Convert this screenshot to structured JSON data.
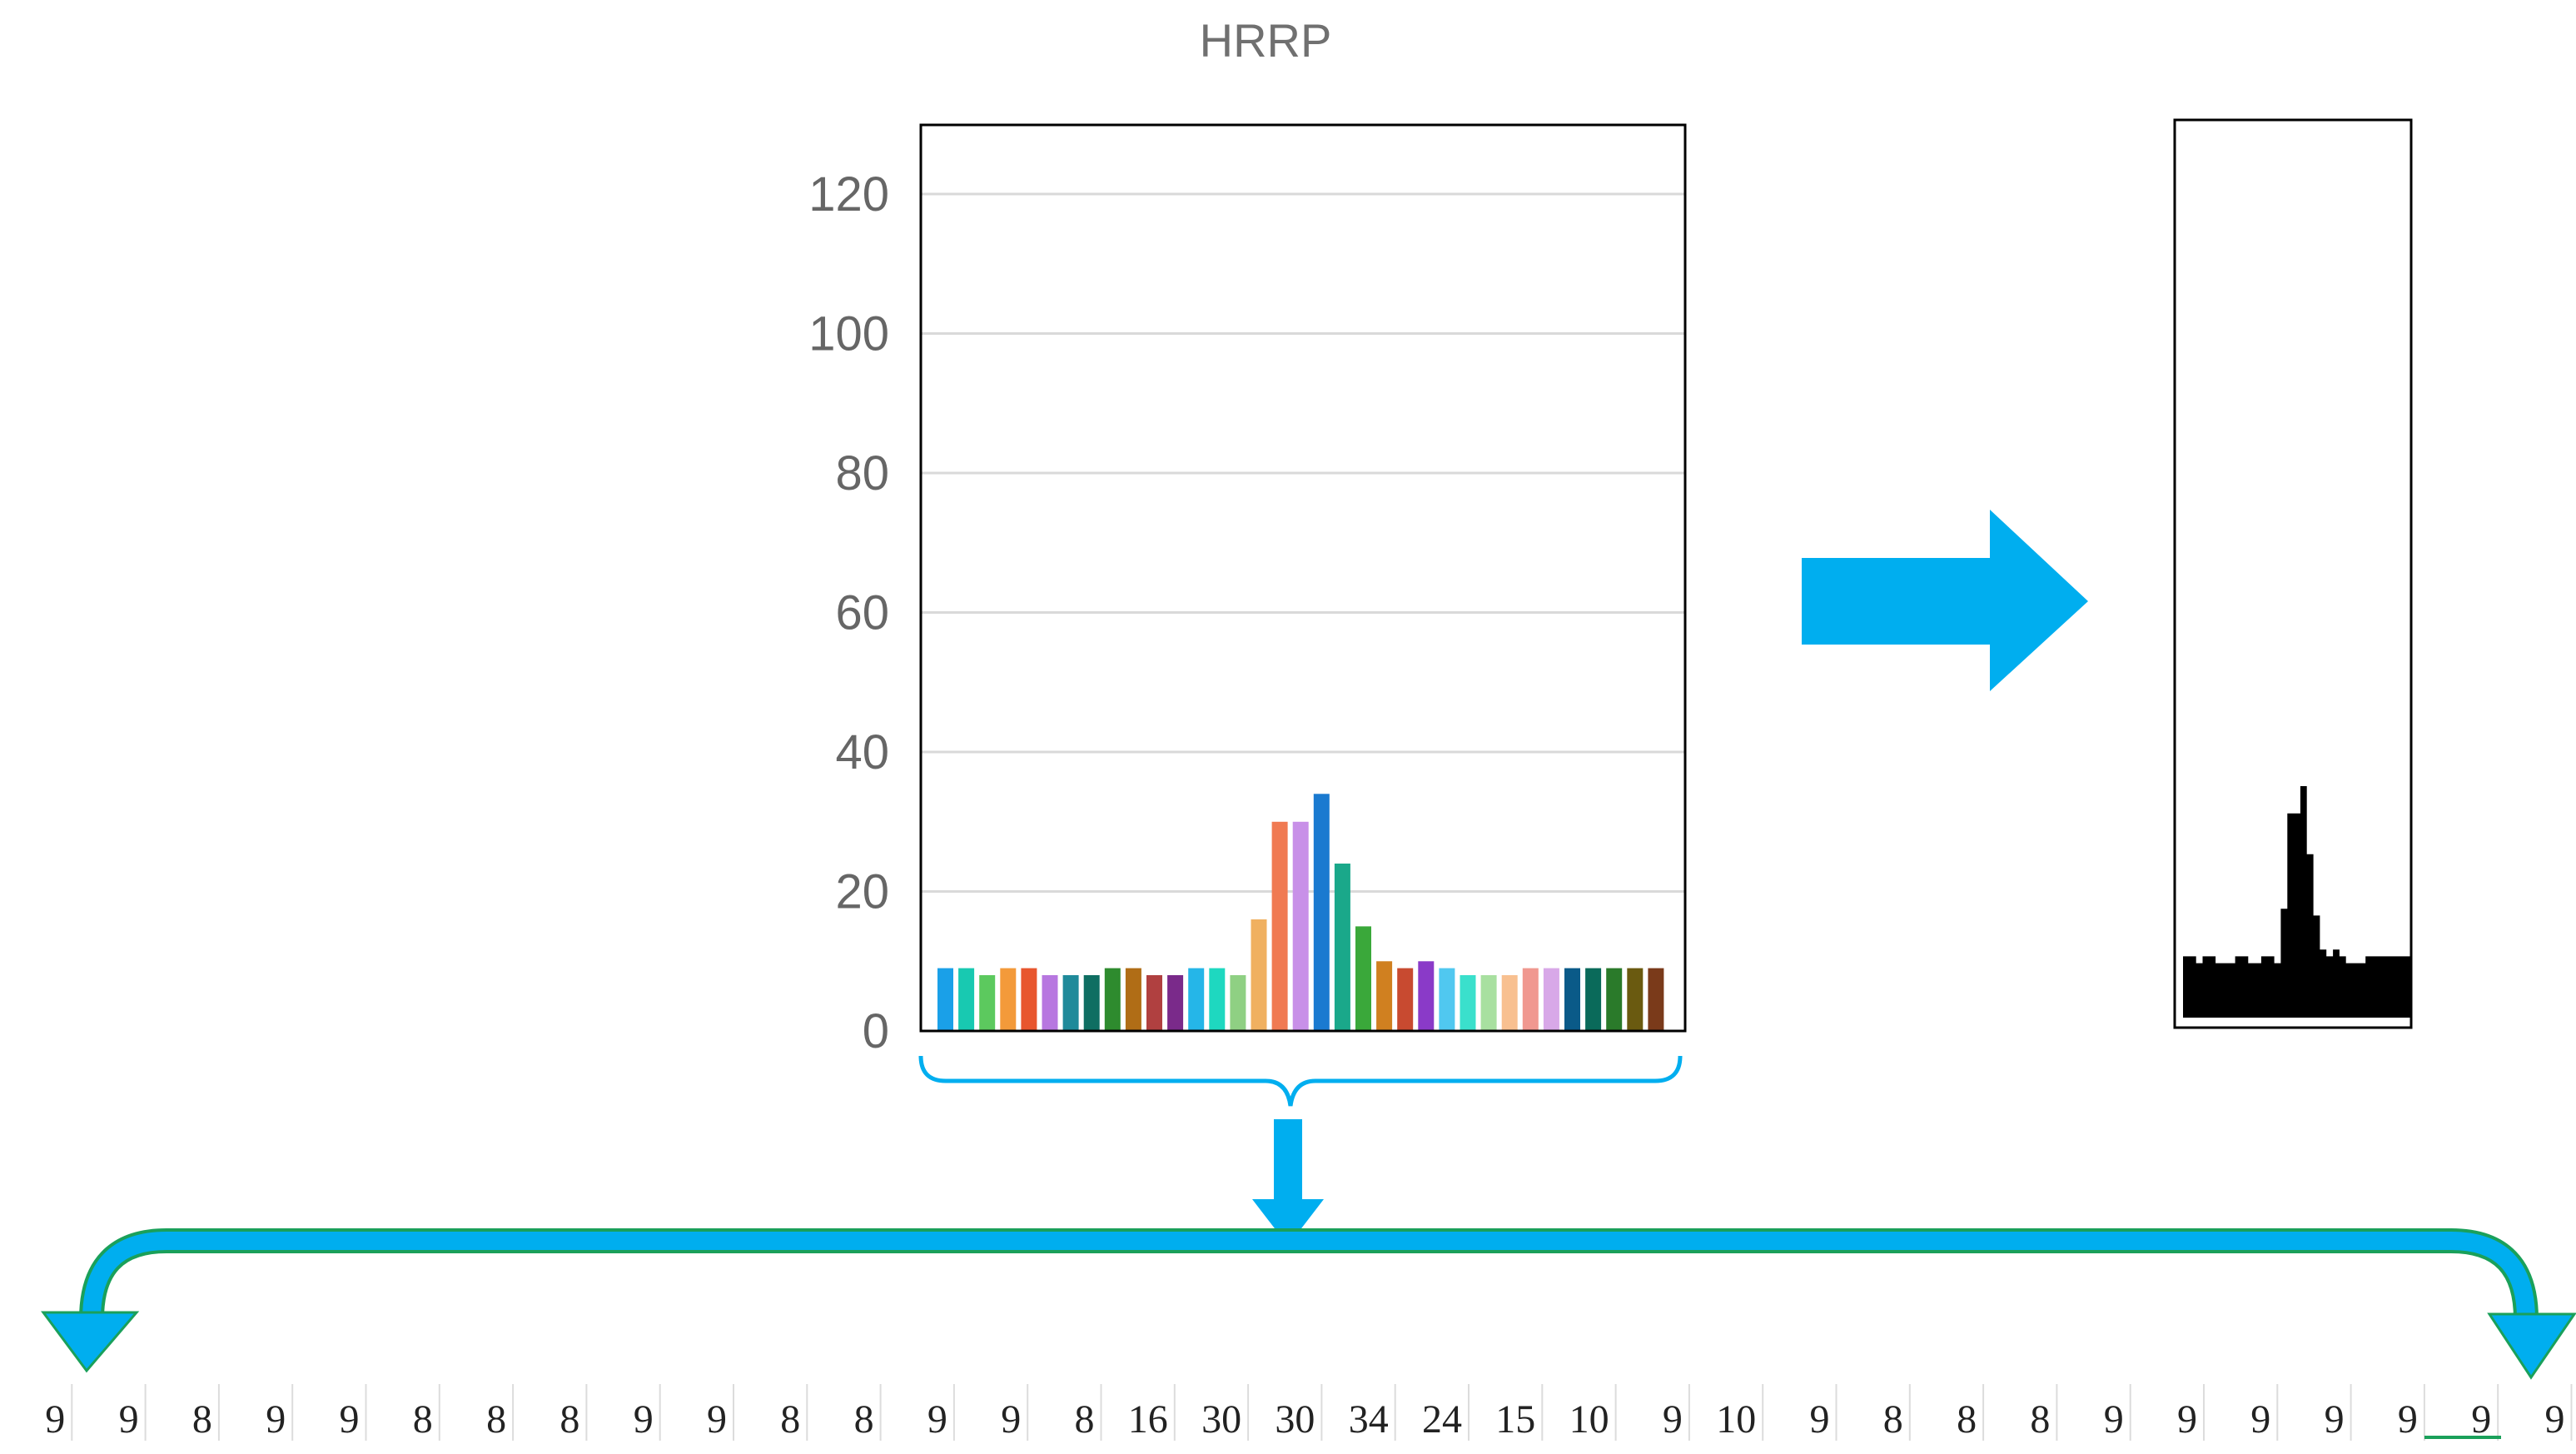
{
  "chart_data": {
    "type": "bar",
    "title": "HRRP",
    "xlabel": "",
    "ylabel": "",
    "ylim": [
      0,
      130
    ],
    "yticks": [
      0,
      20,
      40,
      60,
      80,
      100,
      120
    ],
    "grid": true,
    "values": [
      9,
      9,
      8,
      9,
      9,
      8,
      8,
      8,
      9,
      9,
      8,
      8,
      9,
      9,
      8,
      16,
      30,
      30,
      34,
      24,
      15,
      10,
      9,
      10,
      9,
      8,
      8,
      8,
      9,
      9,
      9,
      9,
      9,
      9,
      9
    ],
    "colors": [
      "#1aa0e8",
      "#18c9b1",
      "#5cc95e",
      "#f39a3a",
      "#e8562e",
      "#b777e0",
      "#1f8a9a",
      "#0f6e62",
      "#2e8b2e",
      "#b06d16",
      "#b04040",
      "#7a2a8a",
      "#25b6e8",
      "#1ed8c0",
      "#8fd083",
      "#f0b060",
      "#f07a52",
      "#c890e8",
      "#1a7ad0",
      "#1aa88a",
      "#3aa83a",
      "#d08020",
      "#c84a30",
      "#8a3ac8",
      "#50c8f0",
      "#3ae0cc",
      "#a8e0a0",
      "#f8c090",
      "#f09890",
      "#d8a8e8",
      "#0a5a88",
      "#0a6a5a",
      "#2a7a2a",
      "#6a5a10",
      "#7a3a1a"
    ]
  },
  "thumbnail": {
    "values": [
      9,
      9,
      8,
      9,
      9,
      8,
      8,
      8,
      9,
      9,
      8,
      8,
      9,
      9,
      8,
      16,
      30,
      30,
      34,
      24,
      15,
      10,
      9,
      10,
      9,
      8,
      8,
      8,
      9,
      9,
      9,
      9,
      9,
      9,
      9
    ],
    "color": "#000000"
  },
  "sequence": {
    "values": [
      "9",
      "9",
      "8",
      "9",
      "9",
      "8",
      "8",
      "8",
      "9",
      "9",
      "8",
      "8",
      "9",
      "9",
      "8",
      "16",
      "30",
      "30",
      "34",
      "24",
      "15",
      "10",
      "9",
      "10",
      "9",
      "8",
      "8",
      "8",
      "9",
      "9",
      "9",
      "9",
      "9",
      "9",
      "9"
    ]
  },
  "colors": {
    "arrow": "#00aeef",
    "arrow_outline": "#1aa05a",
    "text": "#666666",
    "grid": "#d9d9d9"
  }
}
